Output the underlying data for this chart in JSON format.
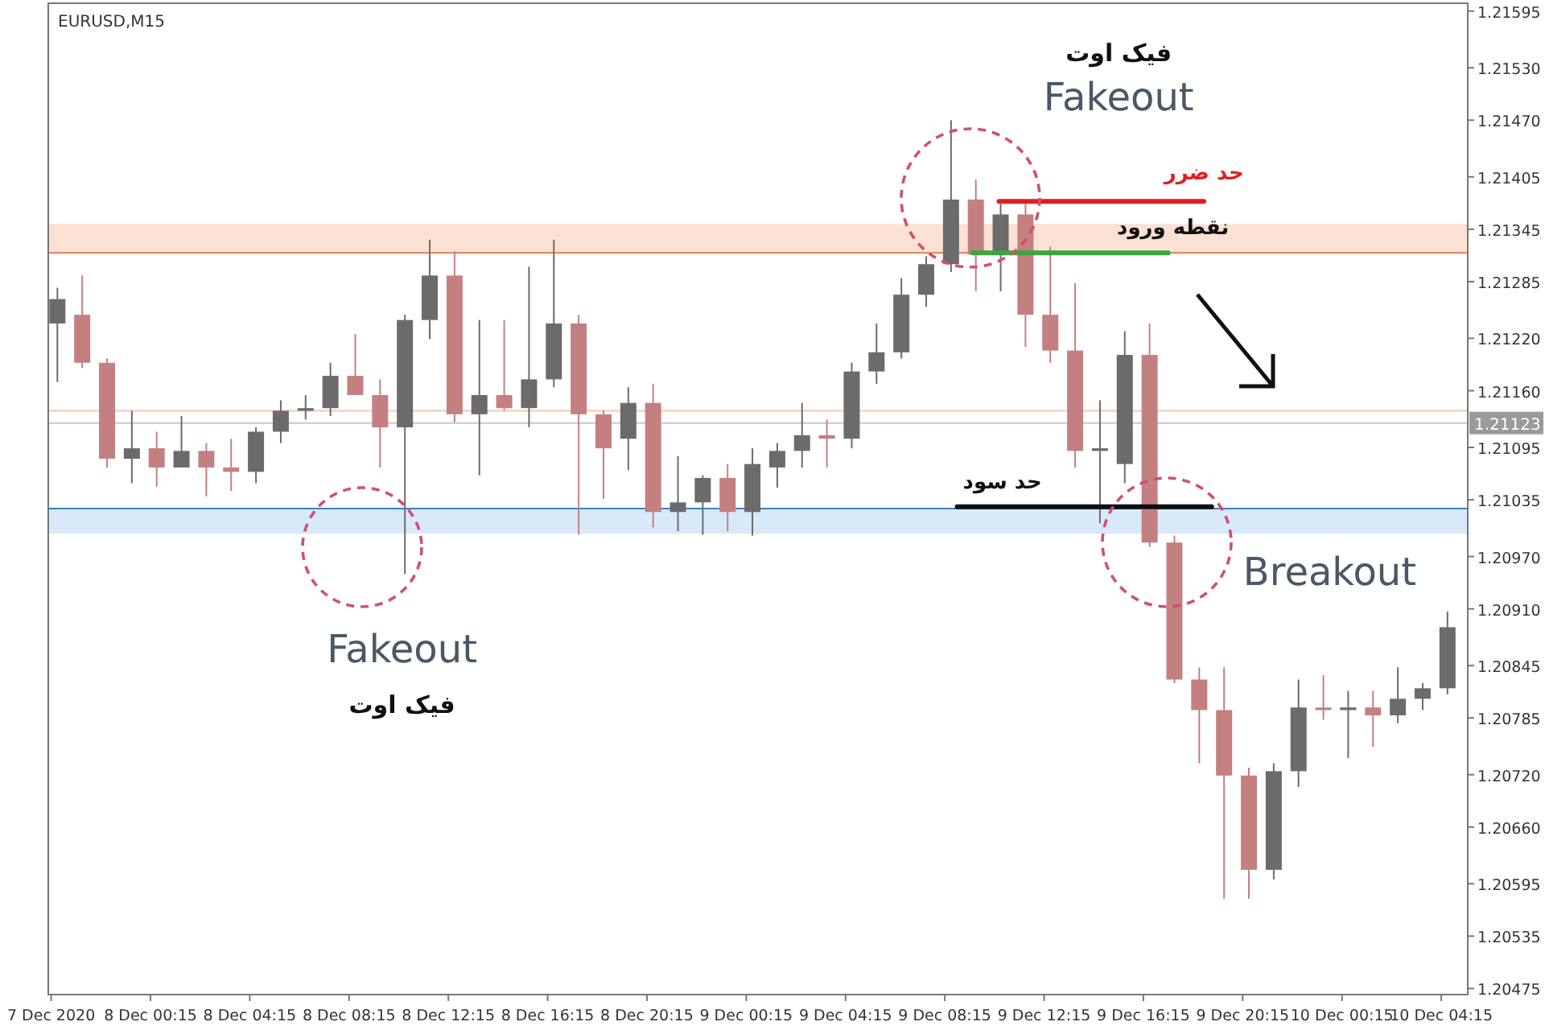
{
  "chart_data": {
    "type": "candlestick",
    "x": [
      "2020-12-07T20:30",
      "2020-12-07T21:30",
      "2020-12-07T22:30",
      "2020-12-07T23:30",
      "2020-12-08T00:30",
      "2020-12-08T01:30",
      "2020-12-08T02:30",
      "2020-12-08T03:30",
      "2020-12-08T04:30",
      "2020-12-08T05:30",
      "2020-12-08T06:30",
      "2020-12-08T07:30",
      "2020-12-08T08:30",
      "2020-12-08T09:30",
      "2020-12-08T10:30",
      "2020-12-08T11:30",
      "2020-12-08T12:30",
      "2020-12-08T13:30",
      "2020-12-08T14:30",
      "2020-12-08T15:30",
      "2020-12-08T16:30",
      "2020-12-08T17:30",
      "2020-12-08T18:30",
      "2020-12-08T19:30",
      "2020-12-08T20:30",
      "2020-12-08T21:30",
      "2020-12-08T22:30",
      "2020-12-08T23:30",
      "2020-12-09T00:30",
      "2020-12-09T01:30",
      "2020-12-09T02:30",
      "2020-12-09T03:30",
      "2020-12-09T04:30",
      "2020-12-09T05:30",
      "2020-12-09T06:30",
      "2020-12-09T07:30",
      "2020-12-09T08:30",
      "2020-12-09T09:30",
      "2020-12-09T10:30",
      "2020-12-09T11:30",
      "2020-12-09T12:30",
      "2020-12-09T13:30",
      "2020-12-09T14:30",
      "2020-12-09T15:30",
      "2020-12-09T16:30",
      "2020-12-09T17:30",
      "2020-12-09T18:30",
      "2020-12-09T19:30",
      "2020-12-09T20:30",
      "2020-12-09T21:30",
      "2020-12-09T22:30",
      "2020-12-09T23:30",
      "2020-12-10T00:30",
      "2020-12-10T01:30",
      "2020-12-10T02:30",
      "2020-12-10T03:30",
      "2020-12-10T04:30"
    ],
    "ohlc": [
      [
        1.21237,
        1.21278,
        1.2117,
        1.21265
      ],
      [
        1.21247,
        1.21292,
        1.21186,
        1.21192
      ],
      [
        1.21192,
        1.21197,
        1.21072,
        1.21082
      ],
      [
        1.21082,
        1.21137,
        1.21054,
        1.21094
      ],
      [
        1.21094,
        1.21113,
        1.2105,
        1.21072
      ],
      [
        1.21072,
        1.21131,
        1.21072,
        1.21091
      ],
      [
        1.21091,
        1.211,
        1.21039,
        1.21072
      ],
      [
        1.21072,
        1.21105,
        1.21045,
        1.21067
      ],
      [
        1.21067,
        1.21118,
        1.21054,
        1.21113
      ],
      [
        1.21113,
        1.21149,
        1.211,
        1.21137
      ],
      [
        1.21137,
        1.21155,
        1.21127,
        1.2114
      ],
      [
        1.2114,
        1.21192,
        1.21131,
        1.21177
      ],
      [
        1.21177,
        1.21225,
        1.21155,
        1.21155
      ],
      [
        1.21155,
        1.21173,
        1.21072,
        1.21118
      ],
      [
        1.21118,
        1.21247,
        1.2095,
        1.21241
      ],
      [
        1.21241,
        1.21333,
        1.21219,
        1.21292
      ],
      [
        1.21292,
        1.2132,
        1.21124,
        1.21133
      ],
      [
        1.21133,
        1.21241,
        1.21063,
        1.21155
      ],
      [
        1.21155,
        1.21241,
        1.21137,
        1.2114
      ],
      [
        1.2114,
        1.21302,
        1.21118,
        1.21173
      ],
      [
        1.21173,
        1.21333,
        1.21164,
        1.21237
      ],
      [
        1.21237,
        1.21247,
        1.20995,
        1.21133
      ],
      [
        1.21133,
        1.21137,
        1.21036,
        1.21094
      ],
      [
        1.21105,
        1.21164,
        1.21069,
        1.21146
      ],
      [
        1.21146,
        1.21168,
        1.21003,
        1.21021
      ],
      [
        1.21021,
        1.21085,
        1.20999,
        1.21032
      ],
      [
        1.21032,
        1.21063,
        1.20995,
        1.2106
      ],
      [
        1.2106,
        1.21076,
        1.20999,
        1.21021
      ],
      [
        1.21021,
        1.21094,
        1.20994,
        1.21076
      ],
      [
        1.21072,
        1.211,
        1.21049,
        1.21091
      ],
      [
        1.21091,
        1.21146,
        1.21072,
        1.21109
      ],
      [
        1.21109,
        1.21127,
        1.21072,
        1.21105
      ],
      [
        1.21105,
        1.21192,
        1.21094,
        1.21182
      ],
      [
        1.21182,
        1.21237,
        1.21168,
        1.21204
      ],
      [
        1.21204,
        1.21289,
        1.21197,
        1.2127
      ],
      [
        1.2127,
        1.21314,
        1.21256,
        1.21305
      ],
      [
        1.21305,
        1.2147,
        1.21296,
        1.21379
      ],
      [
        1.21379,
        1.21402,
        1.21274,
        1.21316
      ],
      [
        1.21316,
        1.21375,
        1.21274,
        1.21362
      ],
      [
        1.21362,
        1.21375,
        1.2121,
        1.21247
      ],
      [
        1.21247,
        1.21325,
        1.21192,
        1.21206
      ],
      [
        1.21206,
        1.21283,
        1.21072,
        1.21091
      ],
      [
        1.21091,
        1.21149,
        1.21008,
        1.21094
      ],
      [
        1.21076,
        1.21228,
        1.21054,
        1.21201
      ],
      [
        1.21201,
        1.21237,
        1.20981,
        1.20986
      ],
      [
        1.20986,
        1.20994,
        1.20825,
        1.20829
      ],
      [
        1.20829,
        1.20843,
        1.20733,
        1.20794
      ],
      [
        1.20794,
        1.20843,
        1.20578,
        1.20719
      ],
      [
        1.20719,
        1.20728,
        1.20578,
        1.20611
      ],
      [
        1.20611,
        1.20733,
        1.206,
        1.20724
      ],
      [
        1.20724,
        1.20829,
        1.20706,
        1.20797
      ],
      [
        1.20797,
        1.20834,
        1.20783,
        1.20794
      ],
      [
        1.20794,
        1.20816,
        1.20739,
        1.20797
      ],
      [
        1.20797,
        1.20816,
        1.20752,
        1.20788
      ],
      [
        1.20788,
        1.20843,
        1.20779,
        1.20807
      ],
      [
        1.20807,
        1.20825,
        1.20794,
        1.20819
      ],
      [
        1.20819,
        1.20907,
        1.20812,
        1.20889
      ]
    ],
    "colors": [
      "#6b6b6b",
      "#c48080",
      "#c48080",
      "#6b6b6b",
      "#c48080",
      "#6b6b6b",
      "#c48080",
      "#c48080",
      "#6b6b6b",
      "#6b6b6b",
      "#6b6b6b",
      "#6b6b6b",
      "#c48080",
      "#c48080",
      "#6b6b6b",
      "#6b6b6b",
      "#c48080",
      "#6b6b6b",
      "#c48080",
      "#6b6b6b",
      "#6b6b6b",
      "#c48080",
      "#c48080",
      "#6b6b6b",
      "#c48080",
      "#6b6b6b",
      "#6b6b6b",
      "#c48080",
      "#6b6b6b",
      "#6b6b6b",
      "#6b6b6b",
      "#c48080",
      "#6b6b6b",
      "#6b6b6b",
      "#6b6b6b",
      "#6b6b6b",
      "#6b6b6b",
      "#c48080",
      "#6b6b6b",
      "#c48080",
      "#c48080",
      "#c48080",
      "#6b6b6b",
      "#6b6b6b",
      "#c48080",
      "#c48080",
      "#c48080",
      "#c48080",
      "#c48080",
      "#6b6b6b",
      "#6b6b6b",
      "#c48080",
      "#6b6b6b",
      "#c48080",
      "#6b6b6b",
      "#6b6b6b",
      "#6b6b6b"
    ],
    "series": [
      {
        "type": "line",
        "x": [
          "2020-12-09T10:26",
          "2020-12-09T18:41"
        ],
        "values": [
          1.21377,
          1.21377
        ],
        "color": "#e02020"
      },
      {
        "type": "line",
        "x": [
          "2020-12-09T09:22",
          "2020-12-09T17:15"
        ],
        "values": [
          1.21318,
          1.21318
        ],
        "color": "#3aa640"
      },
      {
        "type": "line",
        "x": [
          "2020-12-09T08:45",
          "2020-12-09T19:00"
        ],
        "values": [
          1.21027,
          1.21027
        ],
        "color": "#111111"
      }
    ],
    "xlim": [
      "2020-12-07T20:08",
      "2020-12-10T05:19"
    ],
    "ylim": [
      1.20468,
      1.21604
    ],
    "xticks": [
      {
        "value": "2020-12-07T20:15",
        "label": "7 Dec 2020"
      },
      {
        "value": "2020-12-08T00:15",
        "label": "8 Dec 00:15"
      },
      {
        "value": "2020-12-08T04:15",
        "label": "8 Dec 04:15"
      },
      {
        "value": "2020-12-08T08:15",
        "label": "8 Dec 08:15"
      },
      {
        "value": "2020-12-08T12:15",
        "label": "8 Dec 12:15"
      },
      {
        "value": "2020-12-08T16:15",
        "label": "8 Dec 16:15"
      },
      {
        "value": "2020-12-08T20:15",
        "label": "8 Dec 20:15"
      },
      {
        "value": "2020-12-09T00:15",
        "label": "9 Dec 00:15"
      },
      {
        "value": "2020-12-09T04:15",
        "label": "9 Dec 04:15"
      },
      {
        "value": "2020-12-09T08:15",
        "label": "9 Dec 08:15"
      },
      {
        "value": "2020-12-09T12:15",
        "label": "9 Dec 12:15"
      },
      {
        "value": "2020-12-09T16:15",
        "label": "9 Dec 16:15"
      },
      {
        "value": "2020-12-09T20:15",
        "label": "9 Dec 20:15"
      },
      {
        "value": "2020-12-10T00:15",
        "label": "10 Dec 00:15"
      },
      {
        "value": "2020-12-10T04:15",
        "label": "10 Dec 04:15"
      }
    ],
    "yticks": [
      1.21595,
      {
        "value": 1.2153,
        "label": "1.21530"
      },
      {
        "value": 1.2147,
        "label": "1.21470"
      },
      1.21405,
      1.21345,
      1.21285,
      {
        "value": 1.2122,
        "label": "1.21220"
      },
      {
        "value": 1.2116,
        "label": "1.21160"
      },
      1.21095,
      1.21035,
      {
        "value": 1.2097,
        "label": "1.20970"
      },
      {
        "value": 1.2091,
        "label": "1.20910"
      },
      1.20845,
      1.20785,
      {
        "value": 1.2072,
        "label": "1.20720"
      },
      {
        "value": 1.2066,
        "label": "1.20660"
      },
      1.20595,
      1.20535,
      1.20475
    ],
    "bands": [
      {
        "axis": "y",
        "from": 1.21318,
        "to": 1.21351,
        "color": "#fbe0d4"
      },
      {
        "axis": "y",
        "from": 1.20996,
        "to": 1.21025,
        "color": "#d8e9fa"
      }
    ],
    "ref_lines": [
      {
        "axis": "y",
        "value": 1.21318,
        "color": "#e08050"
      },
      {
        "axis": "y",
        "value": 1.21025,
        "color": "#3a80c0"
      },
      {
        "axis": "y",
        "value": 1.21137,
        "color": "#f3c8b4"
      },
      {
        "axis": "y",
        "value": 1.21123,
        "label": "1.21123",
        "color": "#c8c8c8"
      }
    ],
    "annotations": [
      "EURUSD,M15",
      "فیک اوت",
      "Fakeout",
      "حد ضرر",
      "نقطه ورود",
      "حد سود",
      "Breakout",
      "Fakeout",
      "فیک اوت"
    ]
  }
}
